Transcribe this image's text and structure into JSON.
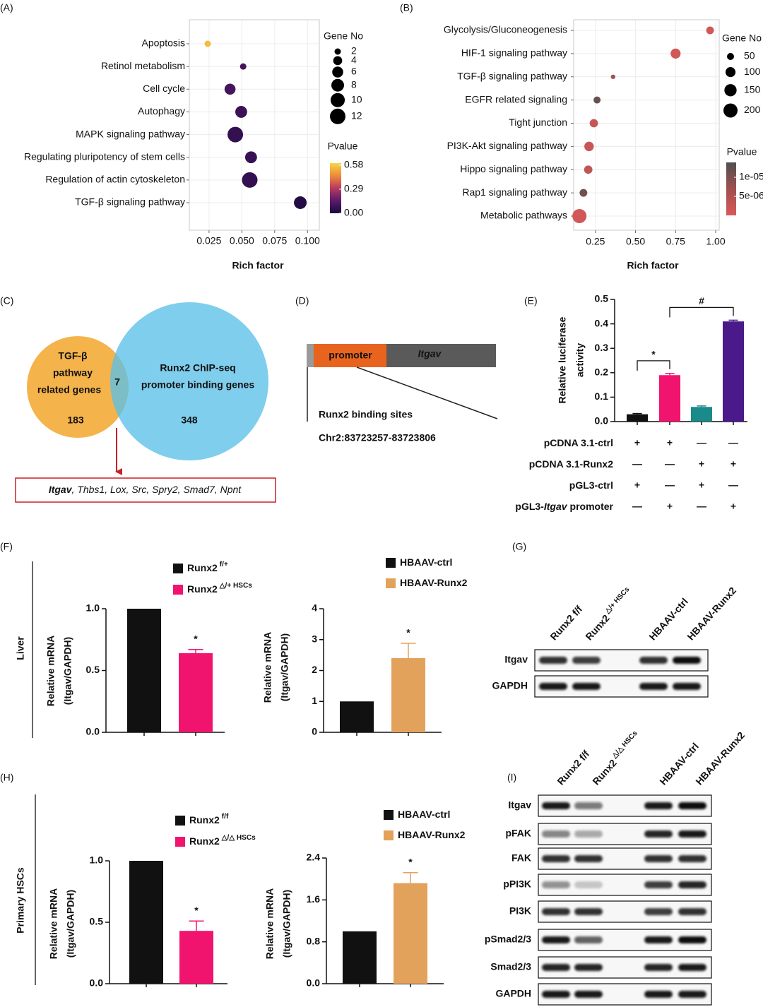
{
  "panel_labels": [
    "(A)",
    "(B)",
    "(C)",
    "(D)",
    "(E)",
    "(F)",
    "(G)",
    "(H)",
    "(I)"
  ],
  "side_labels": [
    "Liver",
    "Primary HSCs"
  ],
  "chart_data": [
    {
      "type": "dot",
      "xlabel": "Rich factor",
      "categories": [
        "Apoptosis",
        "Retinol metabolism",
        "Cell cycle",
        "Autophagy",
        "MAPK signaling pathway",
        "Regulating pluripotency of stem cells",
        "Regulation of actin cytoskeleton",
        "TGF-β signaling pathway"
      ],
      "values": [
        0.024,
        0.051,
        0.041,
        0.0495,
        0.045,
        0.057,
        0.056,
        0.0945
      ],
      "sizes": [
        2,
        2,
        6,
        7,
        12,
        7,
        12,
        8
      ],
      "pvalues": [
        0.55,
        0.1,
        0.1,
        0.08,
        0.06,
        0.07,
        0.06,
        0.02
      ],
      "xlim": [
        0.01,
        0.109
      ],
      "xticks": [
        0.025,
        {
          "value": 0.05,
          "label": "0.050"
        },
        0.075,
        {
          "value": 0.1,
          "label": "0.100"
        }
      ],
      "size_title": "Gene No",
      "size_legend": [
        2,
        4,
        6,
        8,
        10,
        12
      ],
      "color_title": "Pvalue",
      "colorscale": [
        "#1a0a3d",
        "#5a1a6e",
        "#b83a5e",
        "#ee8a3a",
        "#f6d743"
      ],
      "clim": [
        0,
        0.605
      ],
      "cticks": [
        0.58,
        0.29,
        {
          "value": 0,
          "label": "0.00"
        }
      ],
      "highlight": {
        "index": 7,
        "color": "#e0201b"
      },
      "grid": true
    },
    {
      "type": "dot",
      "xlabel": "Rich factor",
      "categories": [
        "Glycolysis/Gluconeogenesis",
        "HIF-1 signaling pathway",
        "TGF-β signaling pathway",
        "EGFR related signaling",
        "Tight junction",
        "PI3K-Akt signaling pathway",
        "Hippo signaling pathway",
        "Rap1 signaling pathway",
        "Metabolic pathways"
      ],
      "values": [
        0.965,
        0.75,
        0.36,
        0.26,
        0.24,
        0.21,
        0.205,
        0.175,
        0.15
      ],
      "sizes": [
        60,
        100,
        20,
        50,
        70,
        90,
        70,
        60,
        200
      ],
      "pvalues": [
        1e-06,
        1e-06,
        7e-06,
        1.2e-05,
        2e-06,
        2e-06,
        3e-06,
        1.1e-05,
        1e-06
      ],
      "xlim": [
        0.114,
        1.022
      ],
      "xticks": [
        0.25,
        {
          "value": 0.5,
          "label": "0.50"
        },
        0.75,
        {
          "value": 1,
          "label": "1.00"
        }
      ],
      "size_title": "Gene No",
      "size_legend": [
        50,
        100,
        150,
        200
      ],
      "color_title": "Pvalue",
      "colorscale": [
        "#d9585a",
        "#a0504f",
        "#505050"
      ],
      "clim": [
        0,
        1.39e-05
      ],
      "cticks": [
        {
          "value": 1e-05,
          "label": "1e-05"
        },
        {
          "value": 5e-06,
          "label": "5e-06"
        }
      ],
      "highlight": {
        "index": 2,
        "color": "#e0201b"
      },
      "grid": true
    },
    {
      "type": "bar",
      "ylabel": [
        "Relative luciferase",
        "activity"
      ],
      "values": [
        0.03,
        0.19,
        0.06,
        0.41
      ],
      "errors": [
        0.003,
        0.007,
        0.004,
        0.005
      ],
      "colors": [
        "#111111",
        "#f0146e",
        "#1a8a8a",
        "#4b1a8a"
      ],
      "ylim": [
        0,
        0.5
      ],
      "yticks": [
        {
          "value": 0,
          "label": "0.0"
        },
        0.1,
        0.2,
        0.3,
        0.4,
        0.5
      ],
      "brackets": [
        {
          "text": "*",
          "from": 0,
          "to": 1
        },
        {
          "text": "#",
          "from": 1,
          "to": 3
        }
      ],
      "conditions": [
        {
          "label": "pCDNA 3.1-ctrl",
          "signs": [
            "+",
            "+",
            "—",
            "—"
          ]
        },
        {
          "label": "pCDNA 3.1-Runx2",
          "signs": [
            "—",
            "—",
            "+",
            "+"
          ]
        },
        {
          "label": "pGL3-ctrl",
          "signs": [
            "+",
            "—",
            "+",
            "—"
          ]
        },
        {
          "label": "pGL3-",
          "label_italic": "Itgav",
          "label_end": "promoter",
          "signs": [
            "—",
            "+",
            "—",
            "+"
          ]
        }
      ]
    },
    {
      "type": "bar",
      "ylabel": [
        "Relative mRNA",
        "(Itgav/GAPDH)"
      ],
      "values": [
        1.0,
        0.64
      ],
      "errors": [
        null,
        0.03
      ],
      "colors": [
        "#111111",
        "#f0146e"
      ],
      "legend": [
        {
          "text": "Runx2",
          "sup": "f/+"
        },
        {
          "text": "Runx2",
          "sup": "△/+ HSCs"
        }
      ],
      "annotations": [
        null,
        "*"
      ],
      "ylim": [
        0,
        1.0
      ],
      "yticks": [
        {
          "value": 0,
          "label": "0.0"
        },
        0.5,
        {
          "value": 1,
          "label": "1.0"
        }
      ]
    },
    {
      "type": "bar",
      "ylabel": [
        "Relative mRNA",
        "(Itgav/GAPDH)"
      ],
      "values": [
        1.0,
        2.4
      ],
      "errors": [
        null,
        0.48
      ],
      "colors": [
        "#111111",
        "#e3a25b"
      ],
      "legend": [
        {
          "text": "HBAAV-ctrl"
        },
        {
          "text": "HBAAV-Runx2"
        }
      ],
      "annotations": [
        null,
        "*"
      ],
      "ylim": [
        0,
        4
      ],
      "yticks": [
        0,
        1,
        2,
        3,
        4
      ]
    },
    {
      "type": "bar",
      "ylabel": [
        "Relative mRNA",
        "(Itgav/GAPDH)"
      ],
      "values": [
        1.0,
        0.43
      ],
      "errors": [
        null,
        0.08
      ],
      "colors": [
        "#111111",
        "#f0146e"
      ],
      "legend": [
        {
          "text": "Runx2",
          "sup": "f/f"
        },
        {
          "text": "Runx2",
          "sup": "△/△ HSCs"
        }
      ],
      "annotations": [
        null,
        "*"
      ],
      "ylim": [
        0,
        1.0
      ],
      "yticks": [
        {
          "value": 0,
          "label": "0.0"
        },
        0.5,
        {
          "value": 1,
          "label": "1.0"
        }
      ]
    },
    {
      "type": "bar",
      "ylabel": [
        "Relative mRNA",
        "(Itgav/GAPDH)"
      ],
      "values": [
        1.0,
        1.92
      ],
      "errors": [
        null,
        0.2
      ],
      "colors": [
        "#111111",
        "#e3a25b"
      ],
      "legend": [
        {
          "text": "HBAAV-ctrl"
        },
        {
          "text": "HBAAV-Runx2"
        }
      ],
      "annotations": [
        null,
        "*"
      ],
      "ylim": [
        0,
        2.4
      ],
      "yticks": [
        {
          "value": 0,
          "label": "0.0"
        },
        0.8,
        1.6,
        2.4
      ]
    }
  ],
  "venn": {
    "left_label": [
      "TGF-β",
      "pathway",
      "related genes"
    ],
    "left_count": 183,
    "overlap_count": 7,
    "right_label": [
      "Runx2 ChIP-seq",
      "promoter binding genes"
    ],
    "right_count": 348,
    "genes_lead": "Itgav",
    "genes_rest": ", Thbs1, Lox, Src, Spry2, Smad7, Npnt"
  },
  "promoter_diagram": {
    "promoter": "promoter",
    "gene": "Itgav",
    "site_label": "Runx2 binding sites",
    "coordinates": "Chr2:83723257-83723806"
  },
  "blot_g": {
    "lanes": [
      {
        "text": "Runx2 f/f"
      },
      {
        "text": "Runx2",
        "sup": "△/+ HSCs"
      },
      {
        "text": "HBAAV-ctrl"
      },
      {
        "text": "HBAAV-Runx2"
      }
    ],
    "rows": [
      "Itgav",
      "GAPDH"
    ]
  },
  "blot_i": {
    "lanes": [
      {
        "text": "Runx2 f/f"
      },
      {
        "text": "Runx2",
        "sup": "△/△ HSCs"
      },
      {
        "text": "HBAAV-ctrl"
      },
      {
        "text": "HBAAV-Runx2"
      }
    ],
    "rows": [
      "Itgav",
      "pFAK",
      "FAK",
      "pPI3K",
      "PI3K",
      "pSmad2/3",
      "Smad2/3",
      "GAPDH"
    ]
  }
}
